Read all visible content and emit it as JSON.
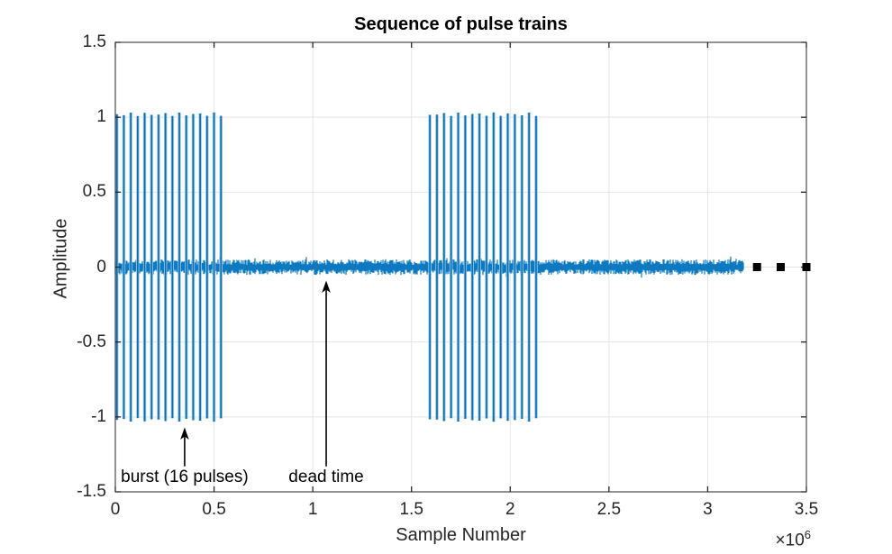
{
  "chart_data": {
    "type": "line",
    "title": "Sequence of pulse trains",
    "xlabel": "Sample Number",
    "ylabel": "Amplitude",
    "xlim": [
      0,
      3500000
    ],
    "ylim": [
      -1.5,
      1.5
    ],
    "grid": true,
    "x_multiplier": {
      "base": "×10",
      "exp": "6"
    },
    "xticks": [
      {
        "value": 0,
        "label": "0"
      },
      {
        "value": 500000,
        "label": "0.5"
      },
      {
        "value": 1000000,
        "label": "1"
      },
      {
        "value": 1500000,
        "label": "1.5"
      },
      {
        "value": 2000000,
        "label": "2"
      },
      {
        "value": 2500000,
        "label": "2.5"
      },
      {
        "value": 3000000,
        "label": "3"
      },
      {
        "value": 3500000,
        "label": "3.5"
      }
    ],
    "yticks": [
      {
        "value": -1.5,
        "label": "-1.5"
      },
      {
        "value": -1,
        "label": "-1"
      },
      {
        "value": -0.5,
        "label": "-0.5"
      },
      {
        "value": 0,
        "label": "0"
      },
      {
        "value": 0.5,
        "label": "0.5"
      },
      {
        "value": 1,
        "label": "1"
      },
      {
        "value": 1.5,
        "label": "1.5"
      }
    ],
    "colors": {
      "line": "#0072BD",
      "line_halo": "#9ec6e2",
      "grid": "#e4e4e4",
      "axis": "#262626",
      "marker": "#000000",
      "annotation": "#000000"
    },
    "noise": {
      "x_start": 0,
      "x_end": 3180000,
      "half_amplitude": 0.052
    },
    "bursts": [
      {
        "x_start": 8000,
        "x_end": 535000,
        "num_pulses": 16,
        "pulse_amplitude": 1.02
      },
      {
        "x_start": 1593000,
        "x_end": 2131000,
        "num_pulses": 16,
        "pulse_amplitude": 1.02
      }
    ],
    "continuation_markers": {
      "x_values": [
        3250000,
        3370000,
        3500000
      ],
      "y": 0,
      "size": 9
    },
    "annotations": [
      {
        "label": "burst (16 pulses)",
        "x": 351000,
        "arrow_tip_amplitude": -1.07,
        "arrow_tail_amplitude": -1.33
      },
      {
        "label": "dead time",
        "x": 1068000,
        "arrow_tip_amplitude": -0.09,
        "arrow_tail_amplitude": -1.33
      }
    ]
  }
}
